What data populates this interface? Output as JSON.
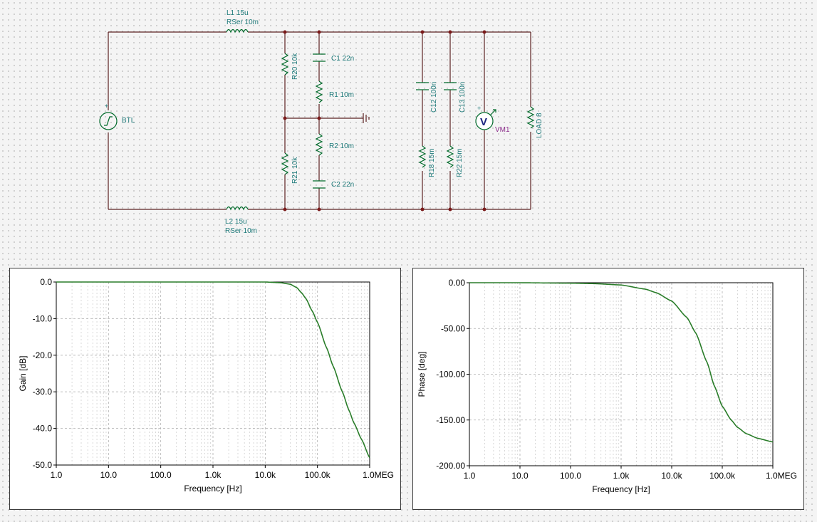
{
  "schematic": {
    "components": [
      {
        "id": "L1",
        "line1": "L1 15u",
        "line2": "RSer 10m"
      },
      {
        "id": "L2",
        "line1": "L2 15u",
        "line2": "RSer 10m"
      },
      {
        "id": "BTL",
        "label": "BTL"
      },
      {
        "id": "R20",
        "label": "R20 10k"
      },
      {
        "id": "R21",
        "label": "R21 10k"
      },
      {
        "id": "C1",
        "label": "C1 22n"
      },
      {
        "id": "R1",
        "label": "R1 10m"
      },
      {
        "id": "R2",
        "label": "R2 10m"
      },
      {
        "id": "C2",
        "label": "C2 22n"
      },
      {
        "id": "C12",
        "label": "C12 100n"
      },
      {
        "id": "R18",
        "label": "R18 15m"
      },
      {
        "id": "C13",
        "label": "C13 100n"
      },
      {
        "id": "R22",
        "label": "R22 15m"
      },
      {
        "id": "VM1",
        "label": "VM1",
        "symbol": "V"
      },
      {
        "id": "LOAD",
        "label": "LOAD 8"
      }
    ],
    "colors": {
      "wire": "#5a2020",
      "component": "#006a2a",
      "label": "#1f7a7a",
      "meter_label": "#8a2b8a"
    }
  },
  "chart_data": [
    {
      "type": "line",
      "name": "gain",
      "title": "",
      "xlabel": "Frequency [Hz]",
      "ylabel": "Gain [dB]",
      "xscale": "log",
      "xlim": [
        1,
        1000000
      ],
      "ylim": [
        -50,
        0
      ],
      "xticks": [
        "1.0",
        "10.0",
        "100.0",
        "1.0k",
        "10.0k",
        "100.0k",
        "1.0MEG"
      ],
      "yticks": [
        "0.0",
        "-10.0",
        "-20.0",
        "-30.0",
        "-40.0",
        "-50.0"
      ],
      "grid": true,
      "color": "#2a7d2a",
      "series": [
        {
          "x": [
            1,
            10,
            100,
            1000,
            10000,
            20000,
            30000,
            40000,
            50000,
            60000,
            80000,
            100000,
            150000,
            200000,
            300000,
            400000,
            500000,
            700000,
            1000000
          ],
          "y": [
            0,
            0,
            0,
            0,
            0,
            -0.2,
            -0.6,
            -1.5,
            -3,
            -4.5,
            -8,
            -11,
            -18,
            -23,
            -30,
            -35,
            -38.5,
            -43,
            -48
          ]
        }
      ]
    },
    {
      "type": "line",
      "name": "phase",
      "title": "",
      "xlabel": "Frequency [Hz]",
      "ylabel": "Phase [deg]",
      "xscale": "log",
      "xlim": [
        1,
        1000000
      ],
      "ylim": [
        -200,
        0
      ],
      "xticks": [
        "1.0",
        "10.0",
        "100.0",
        "1.0k",
        "10.0k",
        "100.0k",
        "1.0MEG"
      ],
      "yticks": [
        "0.00",
        "-50.00",
        "-100.00",
        "-150.00",
        "-200.00"
      ],
      "grid": true,
      "color": "#2a7d2a",
      "series": [
        {
          "x": [
            1,
            10,
            100,
            300,
            1000,
            3000,
            5000,
            10000,
            20000,
            30000,
            50000,
            70000,
            100000,
            150000,
            200000,
            300000,
            500000,
            1000000
          ],
          "y": [
            0,
            0,
            -0.5,
            -1,
            -2.5,
            -7,
            -11,
            -20,
            -38,
            -55,
            -87,
            -113,
            -135,
            -150,
            -158,
            -165,
            -170,
            -174
          ]
        }
      ]
    }
  ]
}
